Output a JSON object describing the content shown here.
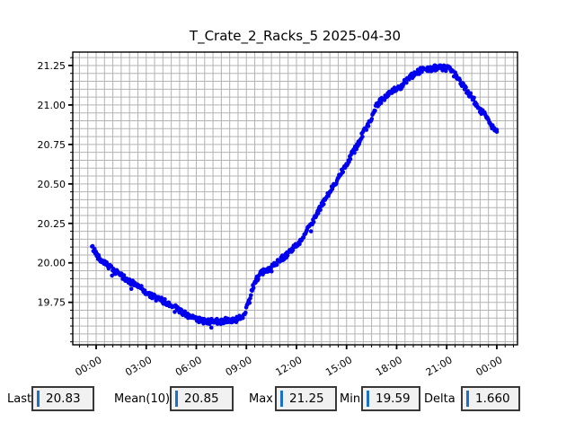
{
  "window": {
    "title": "T_Crate_2_Racks_5 2025-04-30",
    "background": "#ffffff"
  },
  "chart": {
    "title": "T_Crate_2_Racks_5 2025-04-30"
  },
  "chart_data": {
    "type": "scatter",
    "title": "T_Crate_2_Racks_5 2025-04-30",
    "xlabel": "",
    "ylabel": "",
    "marker_color": "#0000ee",
    "grid_color": "#b3b3b3",
    "frame_color": "#000000",
    "legend": "none",
    "x_tick_hours": [
      0,
      3,
      6,
      9,
      12,
      15,
      18,
      21,
      24
    ],
    "x_tick_labels": [
      "00:00",
      "03:00",
      "06:00",
      "09:00",
      "12:00",
      "15:00",
      "18:00",
      "21:00",
      "00:00"
    ],
    "y_tick_values": [
      19.75,
      20.0,
      20.25,
      20.5,
      20.75,
      21.0,
      21.25
    ],
    "y_tick_labels": [
      "19.75",
      "20.00",
      "20.25",
      "20.50",
      "20.75",
      "21.00",
      "21.25"
    ],
    "x_range_hours": [
      -1.4,
      25.24
    ],
    "y_range": [
      19.481,
      21.335
    ],
    "x_minor_step_hours": 0.5,
    "y_minor_step": 0.05,
    "sample_step_hours": 0.04,
    "noise_amplitude": 0.018,
    "series": [
      {
        "name": "T_Crate_2_Racks_5",
        "anchors_t_hours_value": [
          [
            -0.25,
            20.1
          ],
          [
            0,
            20.06
          ],
          [
            0.25,
            20.02
          ],
          [
            0.5,
            20.01
          ],
          [
            0.75,
            19.98
          ],
          [
            1,
            19.95
          ],
          [
            1.5,
            19.92
          ],
          [
            2,
            19.88
          ],
          [
            2.5,
            19.86
          ],
          [
            3,
            19.81
          ],
          [
            3.5,
            19.78
          ],
          [
            4,
            19.76
          ],
          [
            4.5,
            19.73
          ],
          [
            5,
            19.7
          ],
          [
            5.5,
            19.66
          ],
          [
            6,
            19.64
          ],
          [
            6.5,
            19.63
          ],
          [
            7,
            19.63
          ],
          [
            7.5,
            19.63
          ],
          [
            8,
            19.64
          ],
          [
            8.5,
            19.64
          ],
          [
            8.75,
            19.66
          ],
          [
            9,
            19.71
          ],
          [
            9.25,
            19.8
          ],
          [
            9.5,
            19.88
          ],
          [
            9.75,
            19.92
          ],
          [
            10,
            19.94
          ],
          [
            10.5,
            19.97
          ],
          [
            11,
            20.02
          ],
          [
            11.5,
            20.06
          ],
          [
            12,
            20.11
          ],
          [
            12.5,
            20.18
          ],
          [
            13,
            20.27
          ],
          [
            13.5,
            20.36
          ],
          [
            14,
            20.45
          ],
          [
            14.5,
            20.54
          ],
          [
            15,
            20.63
          ],
          [
            15.5,
            20.72
          ],
          [
            16,
            20.82
          ],
          [
            16.5,
            20.92
          ],
          [
            16.75,
            20.99
          ],
          [
            17,
            21.02
          ],
          [
            17.5,
            21.07
          ],
          [
            18,
            21.1
          ],
          [
            18.25,
            21.11
          ],
          [
            18.5,
            21.15
          ],
          [
            19,
            21.19
          ],
          [
            19.5,
            21.22
          ],
          [
            20,
            21.23
          ],
          [
            20.5,
            21.24
          ],
          [
            21,
            21.23
          ],
          [
            21.25,
            21.22
          ],
          [
            21.5,
            21.19
          ],
          [
            22,
            21.12
          ],
          [
            22.5,
            21.05
          ],
          [
            23,
            20.97
          ],
          [
            23.5,
            20.91
          ],
          [
            23.75,
            20.86
          ],
          [
            24,
            20.84
          ]
        ]
      }
    ],
    "min_point": {
      "t_hours": 6.9,
      "value": 19.59
    },
    "max_point": {
      "t_hours": 20.3,
      "value": 21.25
    },
    "last_point": {
      "t_hours": 24.0,
      "value": 20.83
    }
  },
  "stats": {
    "cursor_color": "#1d71c4",
    "items": [
      {
        "label": "Last",
        "value": "20.83"
      },
      {
        "label": "Mean(10)",
        "value": "20.85"
      },
      {
        "label": "Max",
        "value": "21.25"
      },
      {
        "label": "Min",
        "value": "19.59"
      },
      {
        "label": "Delta",
        "value": "1.660"
      }
    ]
  }
}
